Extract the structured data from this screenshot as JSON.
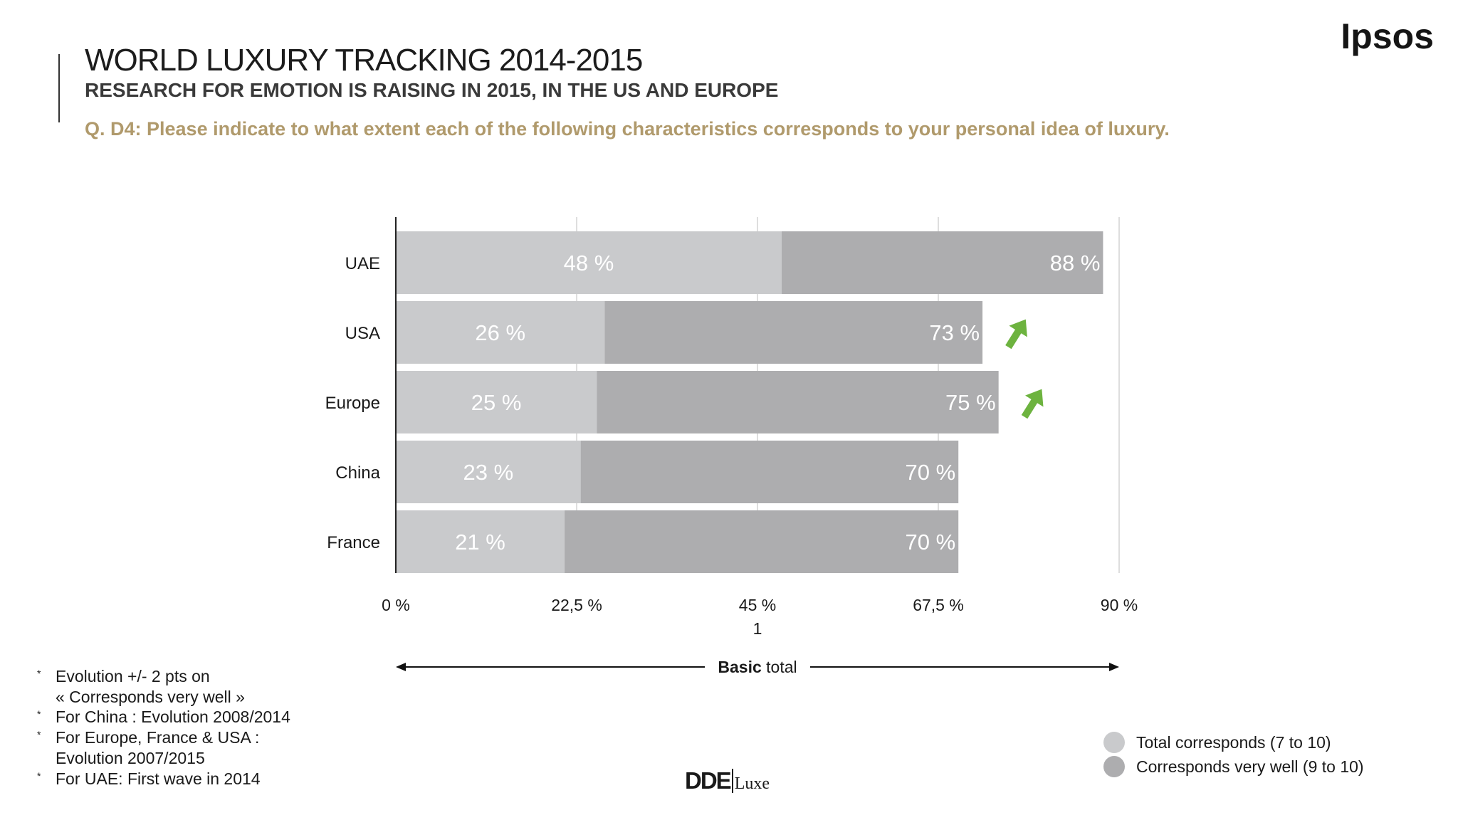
{
  "header": {
    "title": "WORLD LUXURY TRACKING 2014-2015",
    "subtitle": "RESEARCH FOR EMOTION IS RAISING IN 2015, IN THE US AND EUROPE",
    "question": "Q. D4: Please indicate to what extent each of the following characteristics corresponds to your personal idea of luxury.",
    "brand": "Ipsos"
  },
  "colors": {
    "total_corresponds": "#c9cacc",
    "corresponds_very_well": "#adadaf",
    "arrow": "#6db33f",
    "accent_gold": "#b09a6c"
  },
  "chart_data": {
    "type": "bar",
    "orientation": "horizontal",
    "categories": [
      "UAE",
      "USA",
      "Europe",
      "China",
      "France"
    ],
    "series": [
      {
        "name": "Corresponds very well (9 to 10)",
        "values": [
          48,
          26,
          25,
          23,
          21
        ]
      },
      {
        "name": "Total corresponds (7 to 10)",
        "values": [
          88,
          73,
          75,
          70,
          70
        ]
      }
    ],
    "value_labels": {
      "very_well": [
        "48 %",
        "26 %",
        "25 %",
        "23 %",
        "21 %"
      ],
      "total": [
        "88 %",
        "73 %",
        "75 %",
        "70 %",
        "70 %"
      ]
    },
    "tick_labels": [
      "0 %",
      "22,5 %",
      "45 %",
      "67,5 %",
      "90 %"
    ],
    "xlim": [
      0,
      90
    ],
    "ticks": [
      0,
      22.5,
      45,
      67.5,
      90
    ],
    "axis_sub_label": "1",
    "axis_title_bold": "Basic",
    "axis_title_rest": " total",
    "grid": true,
    "trend_up": [
      "USA",
      "Europe"
    ]
  },
  "legend": {
    "items": [
      {
        "label": "Total corresponds (7 to 10)",
        "color": "#c9cacc"
      },
      {
        "label": "Corresponds very well (9 to 10)",
        "color": "#adadaf"
      }
    ]
  },
  "notes": [
    "Evolution +/- 2 pts on",
    "« Corresponds very well »",
    "For China : Evolution 2008/2014",
    "For Europe, France & USA :",
    "Evolution 2007/2015",
    "For UAE: First wave in 2014"
  ],
  "logo": {
    "main": "DDE",
    "sub": "Luxe"
  }
}
